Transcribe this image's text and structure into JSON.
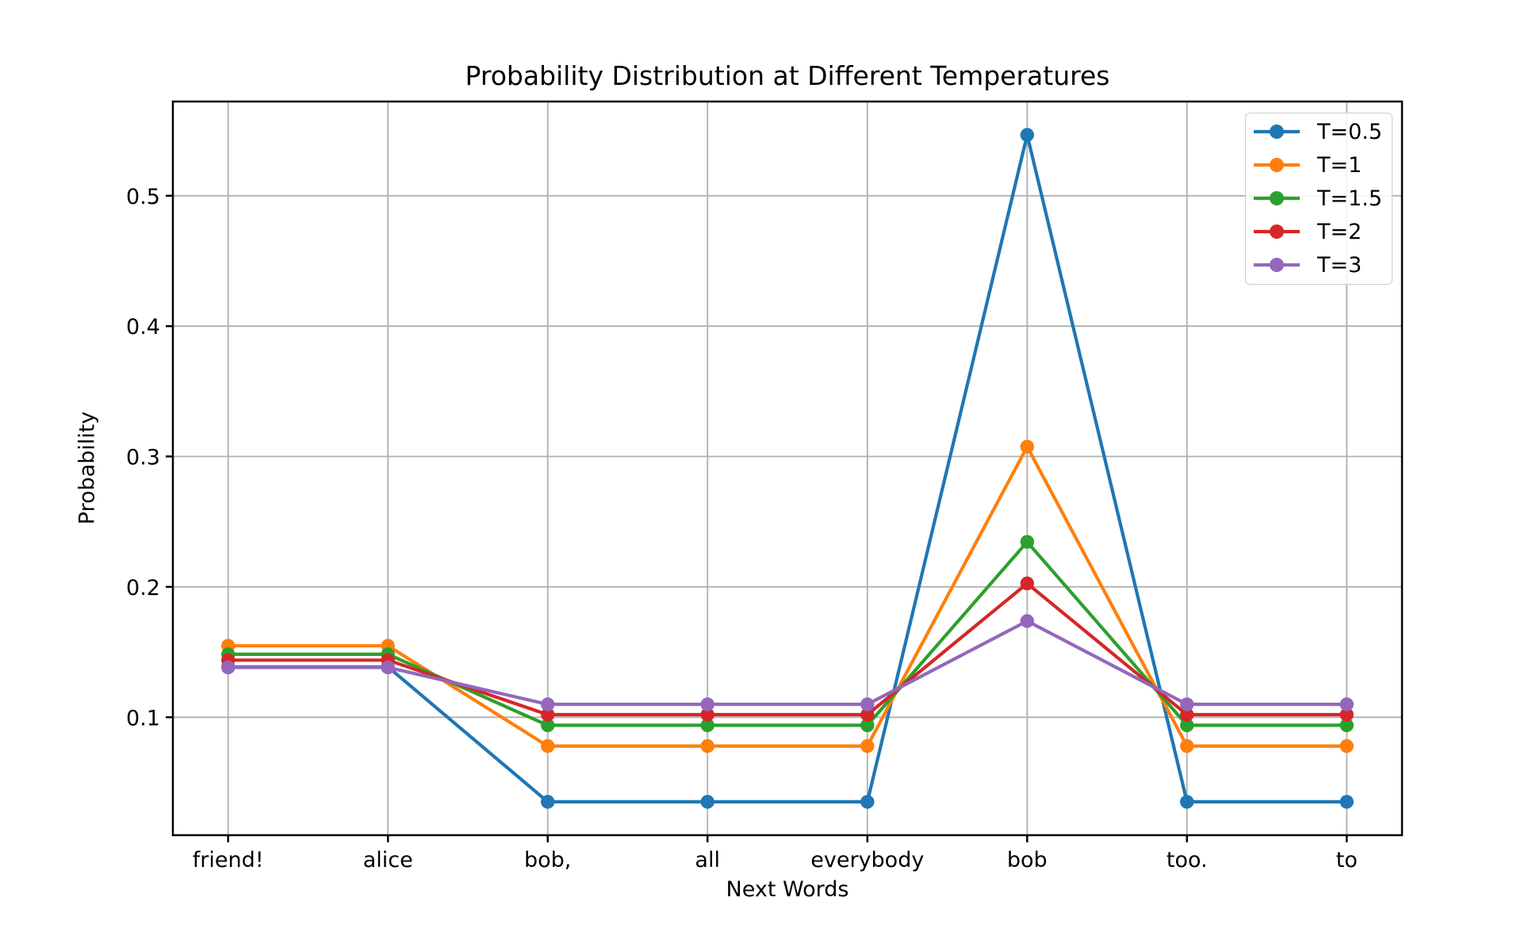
{
  "chart_data": {
    "type": "line",
    "title": "Probability Distribution at Different Temperatures",
    "xlabel": "Next Words",
    "ylabel": "Probability",
    "categories": [
      "friend!",
      "alice",
      "bob,",
      "all",
      "everybody",
      "bob",
      "too.",
      "to"
    ],
    "series": [
      {
        "name": "T=0.5",
        "color": "#1f77b4",
        "values": [
          0.1386,
          0.1386,
          0.0351,
          0.0351,
          0.0351,
          0.5467,
          0.0351,
          0.0351
        ]
      },
      {
        "name": "T=1",
        "color": "#ff7f0e",
        "values": [
          0.1548,
          0.1548,
          0.0779,
          0.0779,
          0.0779,
          0.3075,
          0.0779,
          0.0779
        ]
      },
      {
        "name": "T=1.5",
        "color": "#2ca02c",
        "values": [
          0.1483,
          0.1483,
          0.0938,
          0.0938,
          0.0938,
          0.2345,
          0.0938,
          0.0938
        ]
      },
      {
        "name": "T=2",
        "color": "#d62728",
        "values": [
          0.1438,
          0.1438,
          0.102,
          0.102,
          0.102,
          0.2026,
          0.102,
          0.102
        ]
      },
      {
        "name": "T=3",
        "color": "#9467bd",
        "values": [
          0.1382,
          0.1382,
          0.1099,
          0.1099,
          0.1099,
          0.1738,
          0.1099,
          0.1099
        ]
      }
    ],
    "yticks": [
      0.1,
      0.2,
      0.3,
      0.4,
      0.5
    ],
    "ytick_labels": [
      "0.1",
      "0.2",
      "0.3",
      "0.4",
      "0.5"
    ],
    "ylim": [
      0.0095,
      0.5723
    ],
    "grid": true,
    "legend_position": "upper right",
    "colors": {
      "grid": "#b0b0b0",
      "axis": "#000000",
      "background": "#ffffff",
      "legend_border": "#cccccc"
    }
  }
}
